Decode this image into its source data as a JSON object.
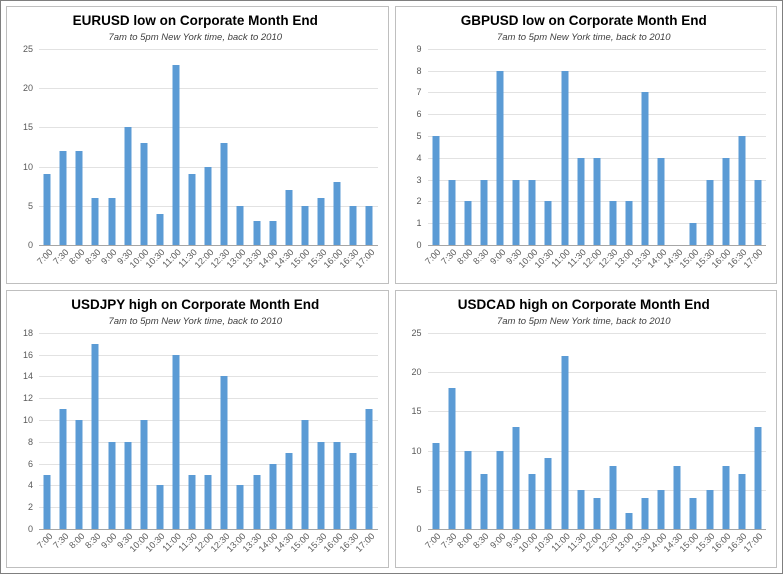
{
  "accent_color": "#5B9BD5",
  "chart_data": [
    {
      "type": "bar",
      "title": "EURUSD low on Corporate Month End",
      "subtitle": "7am to 5pm New York time, back to 2010",
      "categories": [
        "7:00",
        "7:30",
        "8:00",
        "8:30",
        "9:00",
        "9:30",
        "10:00",
        "10:30",
        "11:00",
        "11:30",
        "12:00",
        "12:30",
        "13:00",
        "13:30",
        "14:00",
        "14:30",
        "15:00",
        "15:30",
        "16:00",
        "16:30",
        "17:00"
      ],
      "values": [
        9,
        12,
        12,
        6,
        6,
        15,
        13,
        4,
        23,
        9,
        10,
        13,
        5,
        3,
        3,
        7,
        5,
        6,
        8,
        5,
        5
      ],
      "xlabel": "",
      "ylabel": "",
      "ylim": [
        0,
        25
      ],
      "ytick": 5,
      "grid": true,
      "legend": "none",
      "bar_color": "#5B9BD5"
    },
    {
      "type": "bar",
      "title": "GBPUSD low on Corporate Month End",
      "subtitle": "7am to 5pm New York time, back to 2010",
      "categories": [
        "7:00",
        "7:30",
        "8:00",
        "8:30",
        "9:00",
        "9:30",
        "10:00",
        "10:30",
        "11:00",
        "11:30",
        "12:00",
        "12:30",
        "13:00",
        "13:30",
        "14:00",
        "14:30",
        "15:00",
        "15:30",
        "16:00",
        "16:30",
        "17:00"
      ],
      "values": [
        5,
        3,
        2,
        3,
        8,
        3,
        3,
        2,
        8,
        4,
        4,
        2,
        2,
        7,
        4,
        0,
        1,
        3,
        4,
        5,
        3
      ],
      "xlabel": "",
      "ylabel": "",
      "ylim": [
        0,
        9
      ],
      "ytick": 1,
      "grid": true,
      "legend": "none",
      "bar_color": "#5B9BD5"
    },
    {
      "type": "bar",
      "title": "USDJPY high on Corporate Month End",
      "subtitle": "7am to 5pm New York time, back to 2010",
      "categories": [
        "7:00",
        "7:30",
        "8:00",
        "8:30",
        "9:00",
        "9:30",
        "10:00",
        "10:30",
        "11:00",
        "11:30",
        "12:00",
        "12:30",
        "13:00",
        "13:30",
        "14:00",
        "14:30",
        "15:00",
        "15:30",
        "16:00",
        "16:30",
        "17:00"
      ],
      "values": [
        5,
        11,
        10,
        17,
        8,
        8,
        10,
        4,
        16,
        5,
        5,
        14,
        4,
        5,
        6,
        7,
        10,
        8,
        8,
        7,
        11
      ],
      "xlabel": "",
      "ylabel": "",
      "ylim": [
        0,
        18
      ],
      "ytick": 2,
      "grid": true,
      "legend": "none",
      "bar_color": "#5B9BD5"
    },
    {
      "type": "bar",
      "title": "USDCAD high on Corporate Month End",
      "subtitle": "7am to 5pm New York time, back to 2010",
      "categories": [
        "7:00",
        "7:30",
        "8:00",
        "8:30",
        "9:00",
        "9:30",
        "10:00",
        "10:30",
        "11:00",
        "11:30",
        "12:00",
        "12:30",
        "13:00",
        "13:30",
        "14:00",
        "14:30",
        "15:00",
        "15:30",
        "16:00",
        "16:30",
        "17:00"
      ],
      "values": [
        11,
        18,
        10,
        7,
        10,
        13,
        7,
        9,
        22,
        5,
        4,
        8,
        2,
        4,
        5,
        8,
        4,
        5,
        8,
        7,
        13
      ],
      "xlabel": "",
      "ylabel": "",
      "ylim": [
        0,
        25
      ],
      "ytick": 5,
      "grid": true,
      "legend": "none",
      "bar_color": "#5B9BD5"
    }
  ]
}
